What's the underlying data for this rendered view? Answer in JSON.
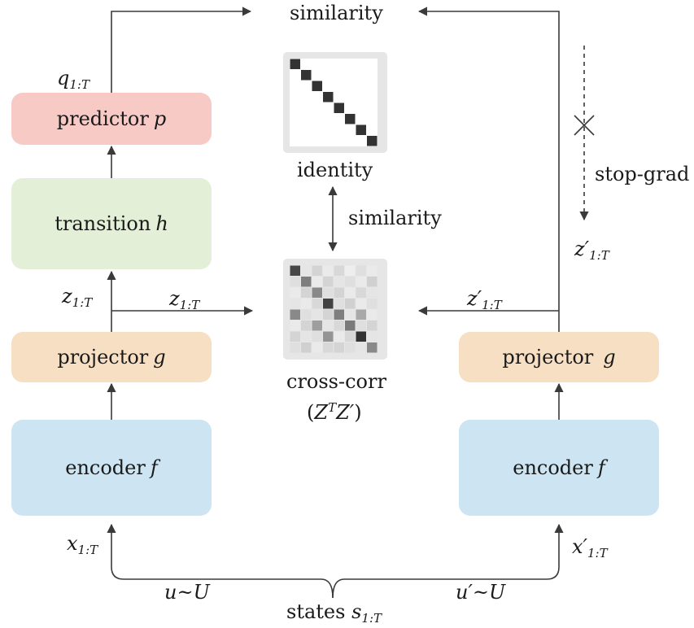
{
  "colors": {
    "predictor": "#f7cac6",
    "transition": "#e3efd6",
    "projector": "#f6dfc2",
    "encoder": "#cde5f2",
    "line": "#3a3a3a",
    "matrix_frame": "#e6e6e6"
  },
  "left": {
    "predictor": {
      "name": "predictor",
      "symbol": "p"
    },
    "transition": {
      "name": "transition",
      "symbol": "h"
    },
    "projector": {
      "name": "projector",
      "symbol": "g"
    },
    "encoder": {
      "name": "encoder",
      "symbol": "f"
    },
    "q_label": {
      "base": "q",
      "sub": "1:T"
    },
    "z_label": {
      "base": "z",
      "sub": "1:T"
    },
    "z_arrow_label": {
      "base": "z",
      "sub": "1:T"
    },
    "x_label": {
      "base": "x",
      "sub": "1:T"
    },
    "aug_label": "u~U"
  },
  "right": {
    "projector": {
      "name": "projector",
      "symbol": "g"
    },
    "encoder": {
      "name": "encoder",
      "symbol": "f"
    },
    "z_stop_label": {
      "base": "z′",
      "sub": "1:T"
    },
    "z_arrow_label": {
      "base": "z′",
      "sub": "1:T"
    },
    "x_label": {
      "base": "x′",
      "sub": "1:T"
    },
    "aug_label": "u′~U",
    "stop_grad": "stop-grad"
  },
  "center": {
    "top_similarity": "similarity",
    "identity_label": "identity",
    "mid_similarity": "similarity",
    "crosscorr_label": "cross-corr",
    "crosscorr_formula": {
      "open": "(",
      "z": "Z",
      "sup": "T",
      "zp": "Z′",
      "close": ")"
    }
  },
  "bottom": {
    "states_text": "states",
    "states_sym": {
      "base": "s",
      "sub": "1:T"
    }
  },
  "identity_matrix": {
    "size": 8,
    "cell_color": "#333333"
  },
  "crosscorr_matrix": {
    "size": 8,
    "levels": [
      [
        0.85,
        0.12,
        0.2,
        0.1,
        0.18,
        0.08,
        0.15,
        0.1
      ],
      [
        0.15,
        0.6,
        0.1,
        0.2,
        0.12,
        0.15,
        0.1,
        0.22
      ],
      [
        0.1,
        0.2,
        0.55,
        0.15,
        0.2,
        0.1,
        0.18,
        0.12
      ],
      [
        0.12,
        0.1,
        0.18,
        0.88,
        0.15,
        0.22,
        0.1,
        0.15
      ],
      [
        0.55,
        0.15,
        0.12,
        0.2,
        0.6,
        0.12,
        0.4,
        0.1
      ],
      [
        0.1,
        0.2,
        0.45,
        0.12,
        0.18,
        0.62,
        0.15,
        0.2
      ],
      [
        0.2,
        0.12,
        0.15,
        0.5,
        0.1,
        0.18,
        0.95,
        0.12
      ],
      [
        0.15,
        0.22,
        0.1,
        0.18,
        0.2,
        0.15,
        0.12,
        0.55
      ]
    ]
  }
}
